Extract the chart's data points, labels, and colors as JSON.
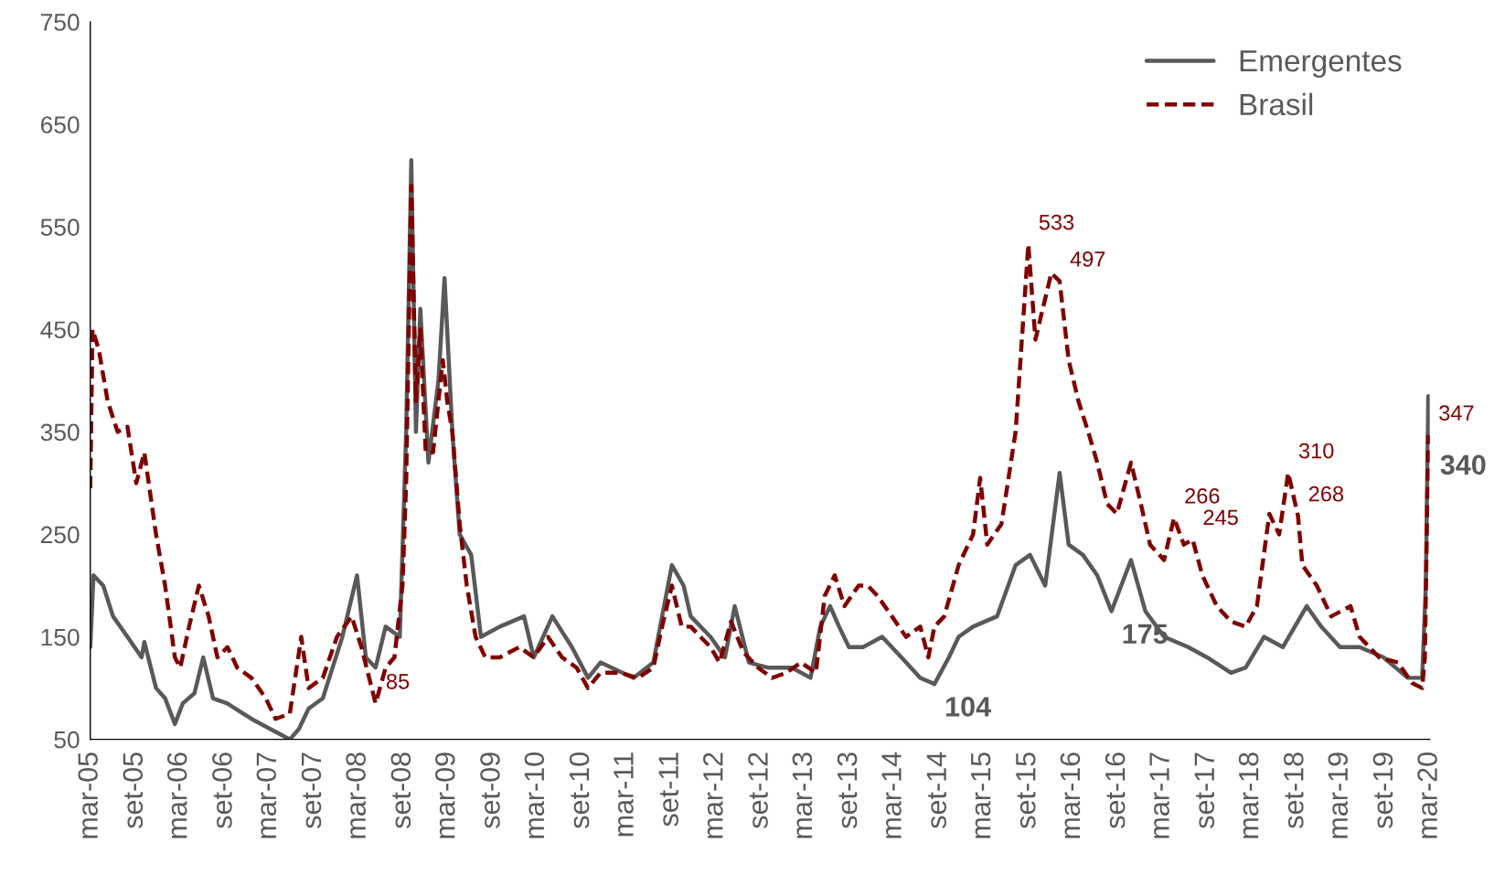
{
  "chart_data": {
    "type": "line",
    "xlim": [
      "2005-03-01",
      "2020-03-01"
    ],
    "ylim": [
      50,
      750
    ],
    "yticks": [
      50,
      150,
      250,
      350,
      450,
      550,
      650,
      750
    ],
    "xticks": [
      {
        "value": "2005-03-01",
        "label": "mar-05"
      },
      {
        "value": "2005-09-01",
        "label": "set-05"
      },
      {
        "value": "2006-03-01",
        "label": "mar-06"
      },
      {
        "value": "2006-09-01",
        "label": "set-06"
      },
      {
        "value": "2007-03-01",
        "label": "mar-07"
      },
      {
        "value": "2007-09-01",
        "label": "set-07"
      },
      {
        "value": "2008-03-01",
        "label": "mar-08"
      },
      {
        "value": "2008-09-01",
        "label": "set-08"
      },
      {
        "value": "2009-03-01",
        "label": "mar-09"
      },
      {
        "value": "2009-09-01",
        "label": "set-09"
      },
      {
        "value": "2010-03-01",
        "label": "mar-10"
      },
      {
        "value": "2010-09-01",
        "label": "set-10"
      },
      {
        "value": "2011-03-01",
        "label": "mar-11"
      },
      {
        "value": "2011-09-01",
        "label": "set-11"
      },
      {
        "value": "2012-03-01",
        "label": "mar-12"
      },
      {
        "value": "2012-09-01",
        "label": "set-12"
      },
      {
        "value": "2013-03-01",
        "label": "mar-13"
      },
      {
        "value": "2013-09-01",
        "label": "set-13"
      },
      {
        "value": "2014-03-01",
        "label": "mar-14"
      },
      {
        "value": "2014-09-01",
        "label": "set-14"
      },
      {
        "value": "2015-03-01",
        "label": "mar-15"
      },
      {
        "value": "2015-09-01",
        "label": "set-15"
      },
      {
        "value": "2016-03-01",
        "label": "mar-16"
      },
      {
        "value": "2016-09-01",
        "label": "set-16"
      },
      {
        "value": "2017-03-01",
        "label": "mar-17"
      },
      {
        "value": "2017-09-01",
        "label": "set-17"
      },
      {
        "value": "2018-03-01",
        "label": "mar-18"
      },
      {
        "value": "2018-09-01",
        "label": "set-18"
      },
      {
        "value": "2019-03-01",
        "label": "mar-19"
      },
      {
        "value": "2019-09-01",
        "label": "set-19"
      },
      {
        "value": "2020-03-01",
        "label": "mar-20"
      }
    ],
    "grid": false,
    "legend": "top right",
    "series": [
      {
        "name": "Emergentes",
        "color": "#595959",
        "line_style": "solid",
        "x": [
          "2005-03-01",
          "2005-03-14",
          "2005-04-23",
          "2005-06-02",
          "2005-07-31",
          "2005-09-27",
          "2005-10-08",
          "2005-11-25",
          "2006-01-01",
          "2006-02-10",
          "2006-03-14",
          "2006-05-01",
          "2006-06-06",
          "2006-07-16",
          "2006-09-13",
          "2006-12-20",
          "2007-04-16",
          "2007-05-26",
          "2007-07-02",
          "2007-08-11",
          "2007-10-08",
          "2007-12-27",
          "2008-02-25",
          "2008-04-01",
          "2008-05-11",
          "2008-06-21",
          "2008-08-18",
          "2008-09-13",
          "2008-10-04",
          "2008-10-23",
          "2008-11-10",
          "2008-12-13",
          "2009-01-23",
          "2009-02-17",
          "2009-03-21",
          "2009-04-20",
          "2009-06-06",
          "2009-07-16",
          "2009-10-01",
          "2010-01-08",
          "2010-02-17",
          "2010-05-04",
          "2010-07-23",
          "2010-09-27",
          "2010-11-17",
          "2011-04-01",
          "2011-06-21",
          "2011-07-27",
          "2011-09-05",
          "2011-10-23",
          "2011-11-21",
          "2012-02-10",
          "2012-04-09",
          "2012-05-19",
          "2012-07-16",
          "2012-10-01",
          "2013-01-08",
          "2013-03-25",
          "2013-05-04",
          "2013-06-13",
          "2013-07-20",
          "2013-08-29",
          "2013-10-26",
          "2014-01-12",
          "2014-04-01",
          "2014-06-17",
          "2014-08-14",
          "2014-10-12",
          "2014-11-21",
          "2015-01-19",
          "2015-04-27",
          "2015-07-12",
          "2015-09-09",
          "2015-11-10",
          "2016-01-08",
          "2016-02-14",
          "2016-04-12",
          "2016-06-10",
          "2016-08-07",
          "2016-10-26",
          "2016-12-24",
          "2017-03-10",
          "2017-06-17",
          "2017-09-02",
          "2017-12-09",
          "2018-02-07",
          "2018-04-23",
          "2018-07-09",
          "2018-10-15",
          "2018-12-13",
          "2019-02-28",
          "2019-05-19",
          "2019-08-25",
          "2019-12-02",
          "2020-01-30",
          "2020-02-14",
          "2020-02-24",
          "2020-03-01"
        ],
        "values": [
          140,
          210,
          200,
          170,
          150,
          130,
          145,
          100,
          90,
          65,
          85,
          95,
          130,
          90,
          85,
          70,
          55,
          50,
          60,
          80,
          90,
          150,
          210,
          130,
          120,
          160,
          150,
          350,
          615,
          350,
          470,
          320,
          400,
          500,
          350,
          250,
          230,
          150,
          160,
          170,
          130,
          170,
          140,
          110,
          125,
          110,
          125,
          170,
          220,
          200,
          170,
          150,
          130,
          180,
          125,
          120,
          120,
          110,
          160,
          180,
          160,
          140,
          140,
          150,
          130,
          110,
          104,
          130,
          150,
          160,
          170,
          220,
          230,
          200,
          310,
          240,
          230,
          210,
          175,
          225,
          175,
          150,
          140,
          130,
          115,
          120,
          150,
          140,
          180,
          160,
          140,
          140,
          130,
          110,
          110,
          200,
          385,
          340
        ]
      },
      {
        "name": "Brasil",
        "color": "#800000",
        "line_style": "dashed",
        "x": [
          "2005-03-01",
          "2005-03-10",
          "2005-04-05",
          "2005-05-11",
          "2005-06-21",
          "2005-07-31",
          "2005-09-05",
          "2005-10-08",
          "2005-11-25",
          "2006-01-01",
          "2006-02-10",
          "2006-03-04",
          "2006-04-09",
          "2006-05-19",
          "2006-06-28",
          "2006-08-03",
          "2006-09-13",
          "2006-10-23",
          "2006-12-20",
          "2007-02-17",
          "2007-03-29",
          "2007-05-26",
          "2007-07-12",
          "2007-08-11",
          "2007-10-08",
          "2007-12-05",
          "2008-02-03",
          "2008-03-14",
          "2008-05-11",
          "2008-06-21",
          "2008-07-27",
          "2008-08-29",
          "2008-09-13",
          "2008-10-04",
          "2008-10-23",
          "2008-11-10",
          "2008-12-02",
          "2009-01-01",
          "2009-02-10",
          "2009-02-28",
          "2009-03-21",
          "2009-04-20",
          "2009-05-19",
          "2009-06-24",
          "2009-08-03",
          "2009-10-01",
          "2009-12-20",
          "2010-02-17",
          "2010-04-16",
          "2010-06-13",
          "2010-08-11",
          "2010-09-27",
          "2010-11-17",
          "2011-02-03",
          "2011-04-20",
          "2011-06-21",
          "2011-07-27",
          "2011-09-05",
          "2011-10-15",
          "2011-11-21",
          "2012-02-10",
          "2012-03-18",
          "2012-05-04",
          "2012-06-24",
          "2012-08-22",
          "2012-10-19",
          "2012-12-16",
          "2013-02-14",
          "2013-04-16",
          "2013-05-22",
          "2013-07-02",
          "2013-08-11",
          "2013-10-08",
          "2013-11-14",
          "2013-12-24",
          "2014-02-21",
          "2014-04-20",
          "2014-06-17",
          "2014-07-20",
          "2014-08-14",
          "2014-09-23",
          "2014-11-21",
          "2015-01-19",
          "2015-02-17",
          "2015-03-18",
          "2015-05-15",
          "2015-07-12",
          "2015-09-02",
          "2015-10-01",
          "2015-11-10",
          "2015-12-05",
          "2016-01-08",
          "2016-02-14",
          "2016-03-25",
          "2016-05-04",
          "2016-06-10",
          "2016-07-20",
          "2016-08-29",
          "2016-10-26",
          "2016-12-05",
          "2017-01-12",
          "2017-03-10",
          "2017-04-20",
          "2017-05-30",
          "2017-07-05",
          "2017-08-14",
          "2017-10-12",
          "2017-12-09",
          "2018-02-07",
          "2018-03-25",
          "2018-05-15",
          "2018-06-24",
          "2018-07-31",
          "2018-09-09",
          "2018-09-27",
          "2018-11-25",
          "2019-01-23",
          "2019-04-12",
          "2019-05-19",
          "2019-08-07",
          "2019-10-23",
          "2019-12-20",
          "2020-01-30",
          "2020-02-10",
          "2020-02-24"
        ],
        "values": [
          295,
          450,
          430,
          380,
          350,
          355,
          300,
          330,
          250,
          200,
          130,
          120,
          160,
          200,
          170,
          130,
          140,
          120,
          110,
          90,
          70,
          75,
          150,
          100,
          110,
          150,
          170,
          140,
          85,
          120,
          130,
          200,
          300,
          590,
          380,
          450,
          330,
          330,
          420,
          380,
          350,
          260,
          200,
          150,
          130,
          130,
          140,
          130,
          150,
          130,
          120,
          100,
          115,
          115,
          110,
          120,
          160,
          200,
          160,
          160,
          140,
          125,
          165,
          135,
          120,
          110,
          115,
          125,
          115,
          190,
          210,
          180,
          200,
          200,
          190,
          170,
          150,
          160,
          130,
          160,
          170,
          220,
          250,
          305,
          240,
          260,
          350,
          533,
          440,
          480,
          505,
          497,
          420,
          380,
          350,
          320,
          280,
          270,
          320,
          280,
          240,
          225,
          266,
          240,
          245,
          210,
          180,
          165,
          160,
          180,
          270,
          250,
          310,
          268,
          220,
          200,
          170,
          180,
          150,
          130,
          125,
          105,
          100,
          130,
          347
        ]
      }
    ],
    "annotations": [
      {
        "text": "85",
        "x": "2008-05-11",
        "y": 85
      },
      {
        "text": "533",
        "x": "2015-09-02",
        "y": 533
      },
      {
        "text": "497",
        "x": "2016-01-08",
        "y": 497
      },
      {
        "text": "266",
        "x": "2017-04-20",
        "y": 266
      },
      {
        "text": "245",
        "x": "2017-07-05",
        "y": 245
      },
      {
        "text": "310",
        "x": "2018-07-31",
        "y": 310
      },
      {
        "text": "268",
        "x": "2018-09-09",
        "y": 268
      },
      {
        "text": "347",
        "x": "2020-02-24",
        "y": 347
      },
      {
        "text": "104",
        "x": "2014-08-14",
        "y": 104
      },
      {
        "text": "175",
        "x": "2016-08-07",
        "y": 175
      },
      {
        "text": "340",
        "x": "2020-03-01",
        "y": 340
      }
    ]
  }
}
